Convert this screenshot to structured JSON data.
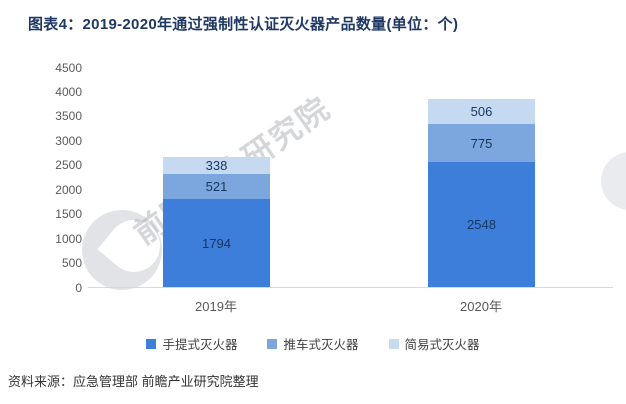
{
  "title": "图表4：2019-2020年通过强制性认证灭火器产品数量(单位：个)",
  "source": "资料来源：应急管理部 前瞻产业研究院整理",
  "watermark": {
    "text": "前瞻产业研究院"
  },
  "chart_data": {
    "type": "bar",
    "subtype": "stacked",
    "title": "图表4：2019-2020年通过强制性认证灭火器产品数量(单位：个)",
    "categories": [
      "2019年",
      "2020年"
    ],
    "series": [
      {
        "name": "手提式灭火器",
        "color": "#3d7edb",
        "values": [
          1794,
          2548
        ]
      },
      {
        "name": "推车式灭火器",
        "color": "#7ba7de",
        "values": [
          521,
          775
        ]
      },
      {
        "name": "简易式灭火器",
        "color": "#c5d9f1",
        "values": [
          338,
          506
        ]
      }
    ],
    "totals": [
      2653,
      3829
    ],
    "ylim": [
      0,
      4500
    ],
    "ytick_step": 500,
    "grid": false,
    "legend_position": "bottom",
    "label_color": "#17375e"
  }
}
